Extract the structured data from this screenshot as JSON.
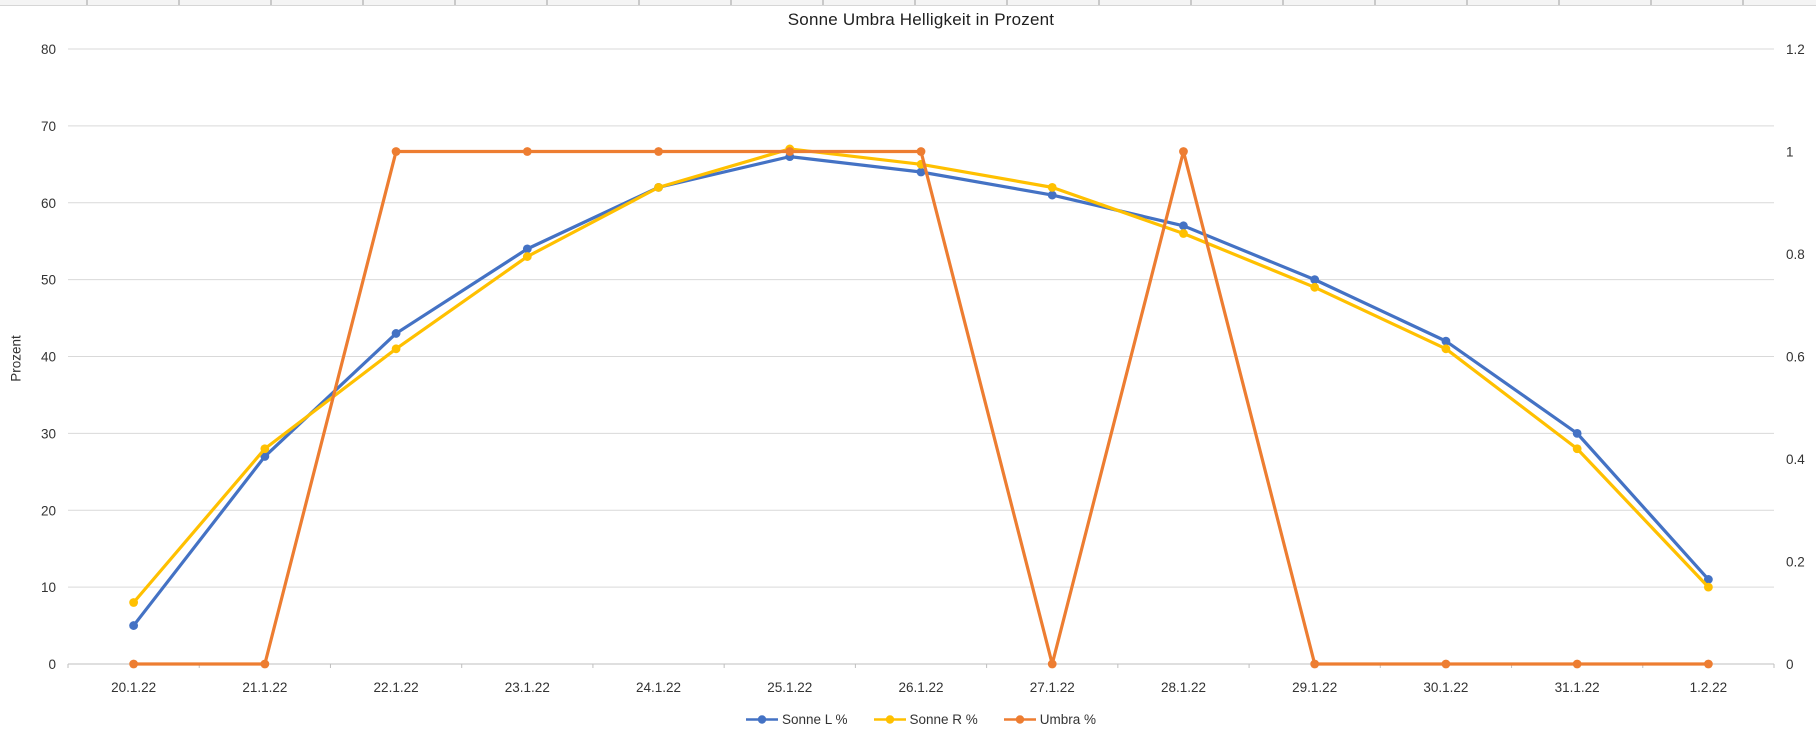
{
  "chart_data": {
    "type": "line",
    "title": "Sonne Umbra Helligkeit in Prozent",
    "ylabel_left": "Prozent",
    "categories": [
      "20.1.22",
      "21.1.22",
      "22.1.22",
      "23.1.22",
      "24.1.22",
      "25.1.22",
      "26.1.22",
      "27.1.22",
      "28.1.22",
      "29.1.22",
      "30.1.22",
      "31.1.22",
      "1.2.22"
    ],
    "series": [
      {
        "name": "Sonne L %",
        "color": "#4472C4",
        "axis": "left",
        "values": [
          5,
          27,
          43,
          54,
          62,
          66,
          64,
          61,
          57,
          50,
          42,
          30,
          11
        ]
      },
      {
        "name": "Sonne R %",
        "color": "#FFC000",
        "axis": "left",
        "values": [
          8,
          28,
          41,
          53,
          62,
          67,
          65,
          62,
          56,
          49,
          41,
          28,
          10
        ]
      },
      {
        "name": "Umbra %",
        "color": "#ED7D31",
        "axis": "right",
        "values": [
          0,
          0,
          1,
          1,
          1,
          1,
          1,
          0,
          1,
          0,
          0,
          0,
          0
        ]
      }
    ],
    "left_axis": {
      "min": 0,
      "max": 80,
      "tick_labels": [
        "80",
        "70",
        "60",
        "50",
        "40",
        "30",
        "20",
        "10",
        "0"
      ]
    },
    "right_axis": {
      "min": 0,
      "max": 1.2,
      "tick_labels": [
        "1.2",
        "1",
        "0.8",
        "0.6",
        "0.4",
        "0.2",
        "0"
      ]
    },
    "grid": true,
    "legend_position": "bottom",
    "colors": {
      "gridline": "#D9D9D9",
      "axis_line": "#BFBFBF",
      "axis_text": "#333333",
      "title_text": "#1F1F1F",
      "background": "#FFFFFF"
    }
  }
}
